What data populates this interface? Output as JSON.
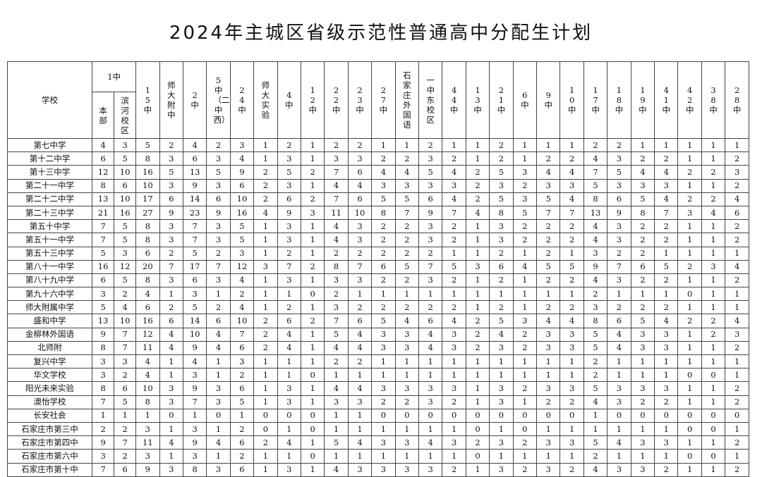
{
  "title": "2024年主城区省级示范性普通高中分配生计划",
  "table": {
    "school_header": "学校",
    "group_header": "1中",
    "group_columns": [
      "本部",
      "滨河校区"
    ],
    "columns": [
      "15中",
      "师大附中",
      "2中",
      "5中（二中西）",
      "24中",
      "师大实验",
      "4中",
      "12中",
      "22中",
      "23中",
      "27中",
      "石家庄外国语",
      "一中东校区",
      "44中",
      "13中",
      "21中",
      "6中",
      "9中",
      "10中",
      "17中",
      "18中",
      "19中",
      "41中",
      "42中",
      "38中",
      "28中"
    ],
    "rows": [
      {
        "school": "第七中学",
        "values": [
          4,
          3,
          5,
          2,
          4,
          2,
          3,
          1,
          2,
          1,
          2,
          2,
          1,
          1,
          2,
          1,
          1,
          2,
          1,
          1,
          1,
          2,
          2,
          1,
          1,
          1,
          1,
          1
        ]
      },
      {
        "school": "第十二中学",
        "values": [
          6,
          5,
          8,
          3,
          6,
          3,
          4,
          1,
          3,
          1,
          3,
          3,
          2,
          2,
          3,
          2,
          1,
          2,
          1,
          2,
          2,
          4,
          3,
          2,
          2,
          1,
          1,
          2
        ]
      },
      {
        "school": "第十三中学",
        "values": [
          12,
          10,
          16,
          5,
          13,
          5,
          9,
          2,
          5,
          2,
          7,
          6,
          4,
          4,
          5,
          4,
          2,
          5,
          3,
          4,
          4,
          7,
          5,
          4,
          4,
          2,
          2,
          3
        ]
      },
      {
        "school": "第二十一中学",
        "values": [
          8,
          6,
          10,
          3,
          9,
          3,
          6,
          2,
          3,
          1,
          4,
          4,
          3,
          3,
          3,
          3,
          2,
          3,
          2,
          3,
          3,
          5,
          3,
          3,
          3,
          1,
          1,
          2
        ]
      },
      {
        "school": "第二十二中学",
        "values": [
          13,
          10,
          17,
          6,
          14,
          6,
          10,
          2,
          6,
          2,
          7,
          6,
          5,
          5,
          6,
          4,
          2,
          5,
          3,
          5,
          4,
          8,
          6,
          5,
          4,
          2,
          2,
          4
        ]
      },
      {
        "school": "第二十三中学",
        "values": [
          21,
          16,
          27,
          9,
          23,
          9,
          16,
          4,
          9,
          3,
          11,
          10,
          8,
          7,
          9,
          7,
          4,
          8,
          5,
          7,
          7,
          13,
          9,
          8,
          7,
          3,
          4,
          6
        ]
      },
      {
        "school": "第五十中学",
        "values": [
          7,
          5,
          8,
          3,
          7,
          3,
          5,
          1,
          3,
          1,
          4,
          3,
          2,
          2,
          3,
          2,
          1,
          3,
          2,
          2,
          2,
          4,
          3,
          2,
          2,
          1,
          1,
          2
        ]
      },
      {
        "school": "第五十一中学",
        "values": [
          7,
          5,
          8,
          3,
          7,
          3,
          5,
          1,
          3,
          1,
          4,
          3,
          2,
          2,
          3,
          2,
          1,
          3,
          2,
          2,
          2,
          4,
          3,
          2,
          2,
          1,
          1,
          2
        ]
      },
      {
        "school": "第五十三中学",
        "values": [
          5,
          3,
          6,
          2,
          5,
          2,
          3,
          1,
          2,
          1,
          2,
          2,
          2,
          2,
          2,
          1,
          1,
          2,
          1,
          2,
          1,
          3,
          2,
          2,
          1,
          1,
          1,
          1
        ]
      },
      {
        "school": "第八十一中学",
        "values": [
          16,
          12,
          20,
          7,
          17,
          7,
          12,
          3,
          7,
          2,
          8,
          7,
          6,
          5,
          7,
          5,
          3,
          6,
          4,
          5,
          5,
          9,
          7,
          6,
          5,
          2,
          3,
          4
        ]
      },
      {
        "school": "第八十九中学",
        "values": [
          6,
          5,
          8,
          3,
          6,
          3,
          4,
          1,
          3,
          1,
          3,
          3,
          2,
          2,
          3,
          2,
          1,
          2,
          1,
          2,
          2,
          4,
          3,
          2,
          2,
          1,
          1,
          2
        ]
      },
      {
        "school": "第九十六中学",
        "values": [
          3,
          2,
          4,
          1,
          3,
          1,
          2,
          1,
          1,
          0,
          2,
          1,
          1,
          1,
          1,
          1,
          1,
          1,
          1,
          1,
          1,
          2,
          1,
          1,
          1,
          0,
          1,
          1
        ]
      },
      {
        "school": "师大附属中学",
        "values": [
          5,
          4,
          6,
          2,
          5,
          2,
          4,
          1,
          2,
          1,
          3,
          2,
          2,
          2,
          2,
          2,
          1,
          2,
          1,
          2,
          2,
          3,
          2,
          2,
          2,
          1,
          1,
          1
        ]
      },
      {
        "school": "盛和中学",
        "values": [
          13,
          10,
          16,
          6,
          14,
          6,
          10,
          2,
          6,
          2,
          7,
          6,
          5,
          4,
          6,
          4,
          2,
          5,
          3,
          4,
          4,
          8,
          6,
          5,
          4,
          2,
          2,
          4
        ]
      },
      {
        "school": "金柳林外国语",
        "values": [
          9,
          7,
          12,
          4,
          10,
          4,
          7,
          2,
          4,
          1,
          5,
          4,
          3,
          3,
          4,
          3,
          2,
          4,
          2,
          3,
          3,
          5,
          4,
          3,
          3,
          1,
          2,
          3
        ]
      },
      {
        "school": "北师附",
        "values": [
          8,
          7,
          11,
          4,
          9,
          4,
          6,
          2,
          4,
          1,
          4,
          4,
          3,
          3,
          4,
          3,
          2,
          3,
          2,
          3,
          3,
          5,
          4,
          3,
          3,
          1,
          1,
          2
        ]
      },
      {
        "school": "复兴中学",
        "values": [
          3,
          3,
          4,
          1,
          4,
          1,
          3,
          1,
          1,
          1,
          2,
          2,
          1,
          1,
          1,
          1,
          1,
          1,
          1,
          1,
          1,
          2,
          1,
          1,
          1,
          1,
          1,
          1
        ]
      },
      {
        "school": "华文学校",
        "values": [
          3,
          2,
          4,
          1,
          3,
          1,
          2,
          1,
          1,
          0,
          1,
          1,
          1,
          1,
          1,
          1,
          1,
          1,
          1,
          1,
          1,
          2,
          1,
          1,
          1,
          0,
          0,
          1
        ]
      },
      {
        "school": "阳光未来实验",
        "values": [
          8,
          6,
          10,
          3,
          9,
          3,
          6,
          1,
          3,
          1,
          4,
          4,
          3,
          3,
          3,
          3,
          1,
          3,
          2,
          3,
          3,
          5,
          3,
          3,
          3,
          1,
          1,
          2
        ]
      },
      {
        "school": "澳怡学校",
        "values": [
          7,
          5,
          8,
          3,
          7,
          3,
          5,
          1,
          3,
          1,
          3,
          3,
          2,
          2,
          3,
          2,
          1,
          3,
          1,
          2,
          2,
          4,
          3,
          2,
          2,
          1,
          1,
          2
        ]
      },
      {
        "school": "长安社会",
        "values": [
          1,
          1,
          1,
          0,
          1,
          0,
          1,
          0,
          0,
          0,
          1,
          1,
          0,
          0,
          0,
          0,
          0,
          0,
          0,
          0,
          0,
          1,
          0,
          0,
          0,
          0,
          0,
          0
        ]
      },
      {
        "school": "石家庄市第三中",
        "values": [
          2,
          2,
          3,
          1,
          3,
          1,
          2,
          0,
          1,
          0,
          1,
          1,
          1,
          1,
          1,
          1,
          0,
          1,
          0,
          1,
          1,
          1,
          1,
          1,
          1,
          0,
          0,
          1
        ]
      },
      {
        "school": "石家庄市第四中",
        "values": [
          9,
          7,
          11,
          4,
          9,
          4,
          6,
          2,
          4,
          1,
          5,
          4,
          3,
          3,
          4,
          3,
          2,
          3,
          2,
          3,
          3,
          5,
          4,
          3,
          3,
          1,
          1,
          2
        ]
      },
      {
        "school": "石家庄市第六中",
        "values": [
          3,
          2,
          3,
          1,
          3,
          1,
          2,
          1,
          1,
          0,
          1,
          1,
          1,
          1,
          1,
          1,
          0,
          1,
          1,
          1,
          1,
          2,
          1,
          1,
          1,
          0,
          0,
          1
        ]
      },
      {
        "school": "石家庄市第十中",
        "values": [
          7,
          6,
          9,
          3,
          8,
          3,
          6,
          1,
          3,
          1,
          4,
          3,
          3,
          3,
          3,
          2,
          1,
          3,
          2,
          3,
          2,
          4,
          3,
          3,
          2,
          1,
          1,
          2
        ]
      }
    ]
  }
}
